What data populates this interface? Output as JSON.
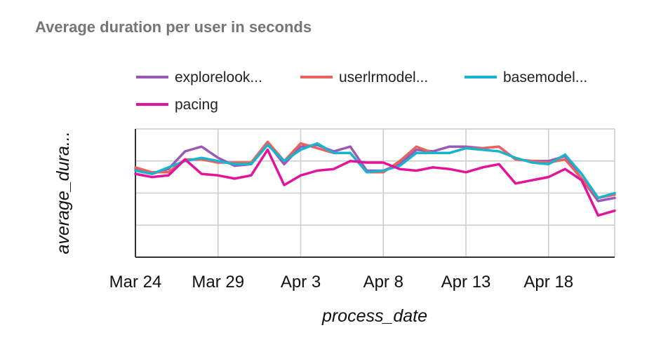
{
  "chart_data": {
    "type": "line",
    "title": "Average duration per user  in seconds",
    "xlabel": "process_date",
    "ylabel": "average_dura...",
    "x_tick_labels": [
      "Mar 24",
      "Mar 29",
      "Apr 3",
      "Apr 8",
      "Apr 13",
      "Apr 18"
    ],
    "x_tick_index": [
      0,
      5,
      10,
      15,
      20,
      25
    ],
    "dates": [
      "Mar 24",
      "Mar 25",
      "Mar 26",
      "Mar 27",
      "Mar 28",
      "Mar 29",
      "Mar 30",
      "Mar 31",
      "Apr 1",
      "Apr 2",
      "Apr 3",
      "Apr 4",
      "Apr 5",
      "Apr 6",
      "Apr 7",
      "Apr 8",
      "Apr 9",
      "Apr 10",
      "Apr 11",
      "Apr 12",
      "Apr 13",
      "Apr 14",
      "Apr 15",
      "Apr 16",
      "Apr 17",
      "Apr 18",
      "Apr 19",
      "Apr 20",
      "Apr 21",
      "Apr 22"
    ],
    "ylim": [
      0,
      4
    ],
    "grid": true,
    "legend_position": "top",
    "series": [
      {
        "name": "explorelook...",
        "color": "#9b59b6",
        "values": [
          2.75,
          2.6,
          2.75,
          3.3,
          3.45,
          3.1,
          2.85,
          2.9,
          3.55,
          2.9,
          3.45,
          3.5,
          3.3,
          3.45,
          2.7,
          2.7,
          2.9,
          3.35,
          3.3,
          3.45,
          3.45,
          3.4,
          3.45,
          3.05,
          3.0,
          3.0,
          3.15,
          2.45,
          1.75,
          1.85
        ]
      },
      {
        "name": "userlrmodel...",
        "color": "#e8635e",
        "values": [
          2.8,
          2.65,
          2.65,
          3.05,
          3.05,
          2.95,
          2.95,
          2.95,
          3.6,
          3.0,
          3.55,
          3.4,
          3.25,
          3.25,
          2.65,
          2.65,
          3.0,
          3.45,
          3.25,
          3.25,
          3.4,
          3.4,
          3.45,
          3.05,
          3.0,
          2.95,
          3.05,
          2.45,
          1.85,
          1.95
        ]
      },
      {
        "name": "basemodel...",
        "color": "#17b4cf",
        "values": [
          2.7,
          2.6,
          2.8,
          3.0,
          3.1,
          3.0,
          2.9,
          2.9,
          3.5,
          3.0,
          3.35,
          3.55,
          3.25,
          3.25,
          2.65,
          2.7,
          2.85,
          3.25,
          3.25,
          3.25,
          3.4,
          3.35,
          3.3,
          3.1,
          2.95,
          2.9,
          3.2,
          2.6,
          1.85,
          2.0
        ]
      },
      {
        "name": "pacing",
        "color": "#e5139b",
        "values": [
          2.6,
          2.5,
          2.55,
          3.05,
          2.6,
          2.55,
          2.45,
          2.55,
          3.35,
          2.25,
          2.55,
          2.7,
          2.75,
          3.0,
          2.95,
          2.95,
          2.75,
          2.7,
          2.8,
          2.75,
          2.65,
          2.8,
          2.9,
          2.3,
          2.4,
          2.5,
          2.75,
          2.4,
          1.3,
          1.45
        ]
      }
    ]
  }
}
